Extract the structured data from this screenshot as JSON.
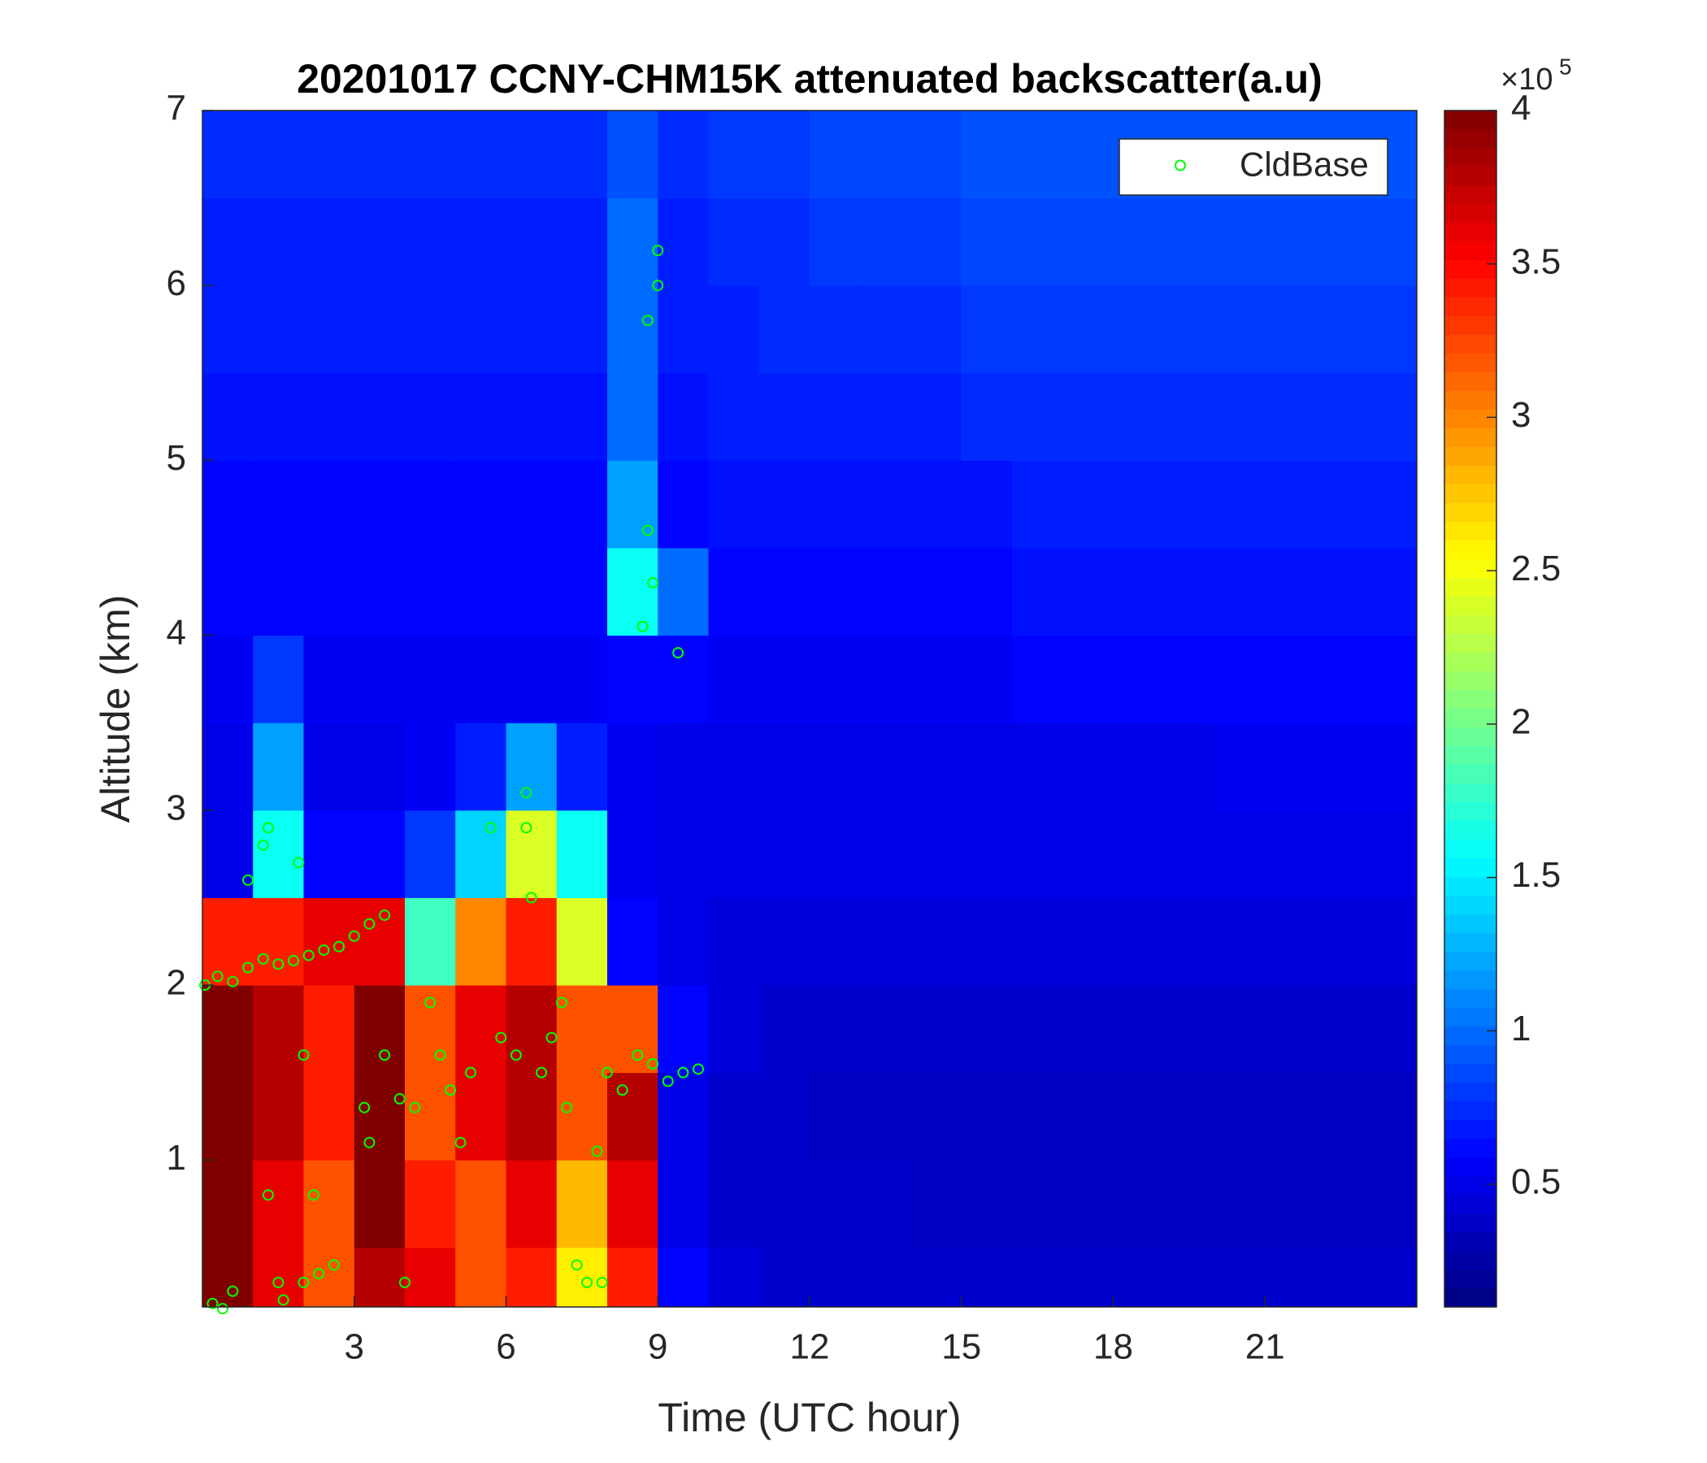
{
  "chart_data": {
    "type": "heatmap",
    "title": "20201017 CCNY-CHM15K attenuated backscatter(a.u)",
    "x_label": "Time (UTC hour)",
    "y_label": "Altitude (km)",
    "xlim": [
      0,
      24
    ],
    "ylim": [
      0.16,
      7
    ],
    "xticks": [
      3,
      6,
      9,
      12,
      15,
      18,
      21
    ],
    "yticks": [
      1,
      2,
      3,
      4,
      5,
      6,
      7
    ],
    "x": [
      0.5,
      1.5,
      2.5,
      3.5,
      4.5,
      5.5,
      6.5,
      7.5,
      8.5,
      9.5,
      10.5,
      11.5,
      12.5,
      13.5,
      14.5,
      15.5,
      16.5,
      17.5,
      18.5,
      19.5,
      20.5,
      21.5,
      22.5,
      23.5
    ],
    "y": [
      0.25,
      0.75,
      1.25,
      1.75,
      2.25,
      2.75,
      3.25,
      3.75,
      4.25,
      4.75,
      5.25,
      5.75,
      6.25,
      6.75
    ],
    "z": [
      [
        4,
        3.6,
        3.2,
        3.8,
        3.6,
        3.2,
        3.4,
        2.6,
        3.4,
        0.6,
        0.45,
        0.4,
        0.4,
        0.4,
        0.4,
        0.4,
        0.4,
        0.4,
        0.4,
        0.4,
        0.4,
        0.4,
        0.4,
        0.4
      ],
      [
        4,
        3.6,
        3.2,
        4,
        3.4,
        3.2,
        3.6,
        2.8,
        3.6,
        0.5,
        0.4,
        0.4,
        0.4,
        0.4,
        0.35,
        0.35,
        0.35,
        0.35,
        0.35,
        0.35,
        0.35,
        0.35,
        0.35,
        0.35
      ],
      [
        4,
        3.8,
        3.4,
        4,
        3.2,
        3.6,
        3.8,
        3.2,
        3.8,
        0.5,
        0.4,
        0.4,
        0.35,
        0.35,
        0.35,
        0.35,
        0.35,
        0.35,
        0.35,
        0.35,
        0.35,
        0.35,
        0.35,
        0.35
      ],
      [
        4,
        3.8,
        3.4,
        4,
        3.2,
        3.6,
        3.8,
        3.2,
        3.2,
        0.6,
        0.45,
        0.4,
        0.4,
        0.4,
        0.4,
        0.4,
        0.4,
        0.4,
        0.4,
        0.4,
        0.4,
        0.4,
        0.4,
        0.4
      ],
      [
        3.4,
        3.4,
        3.6,
        3.6,
        1.8,
        3,
        3.4,
        2.4,
        0.6,
        0.5,
        0.45,
        0.45,
        0.45,
        0.45,
        0.45,
        0.45,
        0.45,
        0.45,
        0.45,
        0.45,
        0.45,
        0.45,
        0.45,
        0.45
      ],
      [
        0.5,
        1.6,
        0.6,
        0.6,
        0.8,
        1.4,
        2.4,
        1.6,
        0.55,
        0.5,
        0.5,
        0.5,
        0.5,
        0.5,
        0.5,
        0.5,
        0.5,
        0.5,
        0.5,
        0.5,
        0.5,
        0.5,
        0.5,
        0.5
      ],
      [
        0.5,
        1.2,
        0.5,
        0.5,
        0.55,
        0.7,
        1.2,
        0.7,
        0.55,
        0.5,
        0.5,
        0.5,
        0.5,
        0.5,
        0.5,
        0.5,
        0.5,
        0.5,
        0.5,
        0.5,
        0.55,
        0.55,
        0.55,
        0.55
      ],
      [
        0.55,
        0.8,
        0.55,
        0.55,
        0.55,
        0.55,
        0.55,
        0.55,
        0.6,
        0.6,
        0.55,
        0.55,
        0.55,
        0.55,
        0.55,
        0.55,
        0.6,
        0.6,
        0.6,
        0.6,
        0.6,
        0.6,
        0.6,
        0.6
      ],
      [
        0.6,
        0.6,
        0.6,
        0.6,
        0.6,
        0.6,
        0.6,
        0.6,
        1.6,
        1.0,
        0.6,
        0.6,
        0.6,
        0.6,
        0.6,
        0.6,
        0.65,
        0.65,
        0.65,
        0.65,
        0.65,
        0.65,
        0.65,
        0.65
      ],
      [
        0.6,
        0.6,
        0.6,
        0.6,
        0.6,
        0.6,
        0.6,
        0.6,
        1.2,
        0.6,
        0.65,
        0.65,
        0.65,
        0.65,
        0.65,
        0.65,
        0.7,
        0.7,
        0.7,
        0.7,
        0.7,
        0.7,
        0.7,
        0.7
      ],
      [
        0.65,
        0.65,
        0.65,
        0.65,
        0.65,
        0.65,
        0.65,
        0.65,
        1.0,
        0.65,
        0.7,
        0.7,
        0.7,
        0.7,
        0.7,
        0.75,
        0.75,
        0.75,
        0.75,
        0.75,
        0.75,
        0.75,
        0.75,
        0.75
      ],
      [
        0.7,
        0.7,
        0.7,
        0.7,
        0.7,
        0.7,
        0.7,
        0.7,
        1.0,
        0.7,
        0.7,
        0.75,
        0.75,
        0.75,
        0.75,
        0.8,
        0.8,
        0.8,
        0.8,
        0.8,
        0.8,
        0.8,
        0.8,
        0.8
      ],
      [
        0.7,
        0.7,
        0.7,
        0.7,
        0.7,
        0.7,
        0.7,
        0.7,
        1.0,
        0.7,
        0.75,
        0.75,
        0.8,
        0.8,
        0.8,
        0.85,
        0.85,
        0.85,
        0.85,
        0.85,
        0.85,
        0.85,
        0.85,
        0.85
      ],
      [
        0.75,
        0.75,
        0.75,
        0.75,
        0.75,
        0.75,
        0.75,
        0.75,
        0.9,
        0.75,
        0.8,
        0.8,
        0.85,
        0.85,
        0.85,
        0.9,
        0.9,
        0.9,
        0.9,
        0.9,
        0.9,
        0.9,
        0.9,
        0.9
      ]
    ],
    "colorbar": {
      "lim": [
        0.1,
        4
      ],
      "ticks": [
        0.5,
        1,
        1.5,
        2,
        2.5,
        3,
        3.5,
        4
      ],
      "scale_label": "×10",
      "scale_exponent": "5"
    },
    "colormap": "jet",
    "legend": "top-right",
    "series": [
      {
        "name": "CldBase",
        "color": "#00ff00",
        "x": [
          0.05,
          0.3,
          0.6,
          0.9,
          1.2,
          1.5,
          1.8,
          2.1,
          2.4,
          2.7,
          3.0,
          3.3,
          3.6,
          0.2,
          0.4,
          0.6,
          0.9,
          1.2,
          1.3,
          1.3,
          1.5,
          1.6,
          2.0,
          2.3,
          2.6,
          1.9,
          2.0,
          2.2,
          3.2,
          3.3,
          3.6,
          3.9,
          4.2,
          4.0,
          4.5,
          4.7,
          4.9,
          5.1,
          5.3,
          5.7,
          5.9,
          6.2,
          6.4,
          6.4,
          6.5,
          6.7,
          6.9,
          7.1,
          7.2,
          7.4,
          7.6,
          7.8,
          7.9,
          8.0,
          8.3,
          8.6,
          8.7,
          8.8,
          8.9,
          8.8,
          9.0,
          9.0,
          8.9,
          9.4,
          9.2,
          9.5,
          9.8
        ],
        "values": [
          2.0,
          2.05,
          2.02,
          2.1,
          2.15,
          2.12,
          2.14,
          2.17,
          2.2,
          2.22,
          2.28,
          2.35,
          2.4,
          0.18,
          0.15,
          0.25,
          2.6,
          2.8,
          2.9,
          0.8,
          0.3,
          0.2,
          0.3,
          0.35,
          0.4,
          2.7,
          1.6,
          0.8,
          1.3,
          1.1,
          1.6,
          1.35,
          1.3,
          0.3,
          1.9,
          1.6,
          1.4,
          1.1,
          1.5,
          2.9,
          1.7,
          1.6,
          3.1,
          2.9,
          2.5,
          1.5,
          1.7,
          1.9,
          1.3,
          0.4,
          0.3,
          1.05,
          0.3,
          1.5,
          1.4,
          1.6,
          4.05,
          4.6,
          4.3,
          5.8,
          6.0,
          6.2,
          1.55,
          3.9,
          1.45,
          1.5,
          1.52
        ]
      }
    ]
  }
}
